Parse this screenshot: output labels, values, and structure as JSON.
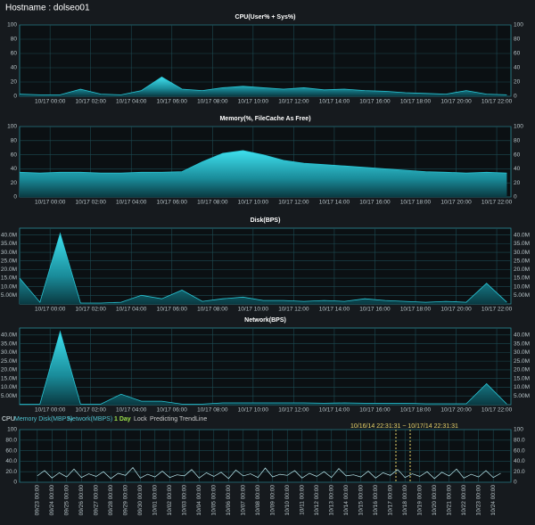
{
  "header": {
    "hostname": "Hostname : dolseo01"
  },
  "tabs": [
    "CPU",
    "Memory Disk(MBPS)",
    "Network(MBPS)",
    "1 Day",
    "Lock",
    "Predicting TrendLine"
  ],
  "range_label": "10/16/14 22:31:31 ~ 10/17/14 22:31:31",
  "chart_data": [
    {
      "type": "area",
      "title": "CPU(User% + Sys%)",
      "color": "#29c6d6",
      "x": [
        -1.5,
        -0.5,
        0.5,
        1.5,
        2.5,
        3.5,
        4.5,
        5.5,
        6.5,
        7.5,
        8.5,
        9.5,
        10.5,
        11.5,
        12.5,
        13.5,
        14.5,
        15.5,
        16.5,
        17.5,
        18.5,
        19.5,
        20.5,
        21.5,
        22.5
      ],
      "values": [
        3,
        2,
        2,
        10,
        3,
        2,
        8,
        27,
        10,
        8,
        12,
        14,
        12,
        10,
        12,
        9,
        10,
        8,
        7,
        5,
        4,
        3,
        8,
        3,
        2
      ],
      "xlim": [
        -1.5,
        22.7
      ],
      "ylim": [
        0,
        100
      ],
      "yticks": [
        0,
        20,
        40,
        60,
        80,
        100
      ],
      "xticks": [
        {
          "value": 0,
          "label": "10/17 00:00"
        },
        {
          "value": 2,
          "label": "10/17 02:00"
        },
        {
          "value": 4,
          "label": "10/17 04:00"
        },
        {
          "value": 6,
          "label": "10/17 06:00"
        },
        {
          "value": 8,
          "label": "10/17 08:00"
        },
        {
          "value": 10,
          "label": "10/17 10:00"
        },
        {
          "value": 12,
          "label": "10/17 12:00"
        },
        {
          "value": 14,
          "label": "10/17 14:00"
        },
        {
          "value": 16,
          "label": "10/17 16:00"
        },
        {
          "value": 18,
          "label": "10/17 18:00"
        },
        {
          "value": 20,
          "label": "10/17 20:00"
        },
        {
          "value": 22,
          "label": "10/17 22:00"
        }
      ]
    },
    {
      "type": "area",
      "title": "Memory(%, FileCache As Free)",
      "color": "#29c6d6",
      "x": [
        -1.5,
        -0.5,
        0.5,
        1.5,
        2.5,
        3.5,
        4.5,
        5.5,
        6.5,
        7.5,
        8.5,
        9.5,
        10.5,
        11.5,
        12.5,
        13.5,
        14.5,
        15.5,
        16.5,
        17.5,
        18.5,
        19.5,
        20.5,
        21.5,
        22.5
      ],
      "values": [
        35,
        34,
        35,
        35,
        34,
        34,
        35,
        35,
        36,
        50,
        62,
        66,
        60,
        52,
        48,
        46,
        44,
        42,
        40,
        38,
        36,
        35,
        34,
        35,
        34
      ],
      "xlim": [
        -1.5,
        22.7
      ],
      "ylim": [
        0,
        100
      ],
      "yticks": [
        0,
        20,
        40,
        60,
        80,
        100
      ],
      "xticks": [
        {
          "value": 0,
          "label": "10/17 00:00"
        },
        {
          "value": 2,
          "label": "10/17 02:00"
        },
        {
          "value": 4,
          "label": "10/17 04:00"
        },
        {
          "value": 6,
          "label": "10/17 06:00"
        },
        {
          "value": 8,
          "label": "10/17 08:00"
        },
        {
          "value": 10,
          "label": "10/17 10:00"
        },
        {
          "value": 12,
          "label": "10/17 12:00"
        },
        {
          "value": 14,
          "label": "10/17 14:00"
        },
        {
          "value": 16,
          "label": "10/17 16:00"
        },
        {
          "value": 18,
          "label": "10/17 18:00"
        },
        {
          "value": 20,
          "label": "10/17 20:00"
        },
        {
          "value": 22,
          "label": "10/17 22:00"
        }
      ]
    },
    {
      "type": "area",
      "title": "Disk(BPS)",
      "color": "#29c6d6",
      "x": [
        -1.5,
        -0.5,
        0.5,
        1.5,
        2.5,
        3.5,
        4.5,
        5.5,
        6.5,
        7.5,
        8.5,
        9.5,
        10.5,
        11.5,
        12.5,
        13.5,
        14.5,
        15.5,
        16.5,
        17.5,
        18.5,
        19.5,
        20.5,
        21.5,
        22.5
      ],
      "values": [
        15000000,
        1000000,
        41000000,
        500000,
        500000,
        1000000,
        5000000,
        3000000,
        8000000,
        1500000,
        3000000,
        4000000,
        2000000,
        2000000,
        1500000,
        2000000,
        1500000,
        3000000,
        2000000,
        1500000,
        1000000,
        1500000,
        1000000,
        12000000,
        1000000
      ],
      "xlim": [
        -1.5,
        22.7
      ],
      "ylim": [
        0,
        44000000
      ],
      "yticks": [
        {
          "value": 5000000,
          "label": "5.00M"
        },
        {
          "value": 10000000,
          "label": "10.0M"
        },
        {
          "value": 15000000,
          "label": "15.0M"
        },
        {
          "value": 20000000,
          "label": "20.0M"
        },
        {
          "value": 25000000,
          "label": "25.0M"
        },
        {
          "value": 30000000,
          "label": "30.0M"
        },
        {
          "value": 35000000,
          "label": "35.0M"
        },
        {
          "value": 40000000,
          "label": "40.0M"
        }
      ],
      "xticks": [
        {
          "value": 0,
          "label": "10/17 00:00"
        },
        {
          "value": 2,
          "label": "10/17 02:00"
        },
        {
          "value": 4,
          "label": "10/17 04:00"
        },
        {
          "value": 6,
          "label": "10/17 06:00"
        },
        {
          "value": 8,
          "label": "10/17 08:00"
        },
        {
          "value": 10,
          "label": "10/17 10:00"
        },
        {
          "value": 12,
          "label": "10/17 12:00"
        },
        {
          "value": 14,
          "label": "10/17 14:00"
        },
        {
          "value": 16,
          "label": "10/17 16:00"
        },
        {
          "value": 18,
          "label": "10/17 18:00"
        },
        {
          "value": 20,
          "label": "10/17 20:00"
        },
        {
          "value": 22,
          "label": "10/17 22:00"
        }
      ]
    },
    {
      "type": "area",
      "title": "Network(BPS)",
      "color": "#29c6d6",
      "x": [
        -1.5,
        -0.5,
        0.5,
        1.5,
        2.5,
        3.5,
        4.5,
        5.5,
        6.5,
        7.5,
        8.5,
        9.5,
        10.5,
        11.5,
        12.5,
        13.5,
        14.5,
        15.5,
        16.5,
        17.5,
        18.5,
        19.5,
        20.5,
        21.5,
        22.5
      ],
      "values": [
        300000,
        300000,
        42000000,
        300000,
        300000,
        6000000,
        2000000,
        2000000,
        300000,
        300000,
        1000000,
        1000000,
        1000000,
        1000000,
        1000000,
        800000,
        1000000,
        800000,
        800000,
        800000,
        500000,
        500000,
        500000,
        12000000,
        300000
      ],
      "xlim": [
        -1.5,
        22.7
      ],
      "ylim": [
        0,
        44000000
      ],
      "yticks": [
        {
          "value": 5000000,
          "label": "5.00M"
        },
        {
          "value": 10000000,
          "label": "10.0M"
        },
        {
          "value": 15000000,
          "label": "15.0M"
        },
        {
          "value": 20000000,
          "label": "20.0M"
        },
        {
          "value": 25000000,
          "label": "25.0M"
        },
        {
          "value": 30000000,
          "label": "30.0M"
        },
        {
          "value": 35000000,
          "label": "35.0M"
        },
        {
          "value": 40000000,
          "label": "40.0M"
        }
      ],
      "xticks": [
        {
          "value": 0,
          "label": "10/17 00:00"
        },
        {
          "value": 2,
          "label": "10/17 02:00"
        },
        {
          "value": 4,
          "label": "10/17 04:00"
        },
        {
          "value": 6,
          "label": "10/17 06:00"
        },
        {
          "value": 8,
          "label": "10/17 08:00"
        },
        {
          "value": 10,
          "label": "10/17 10:00"
        },
        {
          "value": 12,
          "label": "10/17 12:00"
        },
        {
          "value": 14,
          "label": "10/17 14:00"
        },
        {
          "value": 16,
          "label": "10/17 16:00"
        },
        {
          "value": 18,
          "label": "10/17 18:00"
        },
        {
          "value": 20,
          "label": "10/17 20:00"
        },
        {
          "value": 22,
          "label": "10/17 22:00"
        }
      ]
    },
    {
      "type": "line",
      "color": "#bfeff5",
      "x": [
        0,
        0.5,
        1,
        1.5,
        2,
        2.5,
        3,
        3.5,
        4,
        4.5,
        5,
        5.5,
        6,
        6.5,
        7,
        7.5,
        8,
        8.5,
        9,
        9.5,
        10,
        10.5,
        11,
        11.5,
        12,
        12.5,
        13,
        13.5,
        14,
        14.5,
        15,
        15.5,
        16,
        16.5,
        17,
        17.5,
        18,
        18.5,
        19,
        19.5,
        20,
        20.5,
        21,
        21.5,
        22,
        22.5,
        23,
        23.5,
        24,
        24.5,
        25,
        25.5,
        26,
        26.5,
        27,
        27.5,
        28,
        28.5,
        29,
        29.5,
        30,
        30.5,
        31,
        31.5
      ],
      "values": [
        12,
        22,
        8,
        18,
        10,
        25,
        9,
        16,
        11,
        20,
        7,
        17,
        13,
        28,
        8,
        15,
        10,
        21,
        9,
        14,
        12,
        24,
        8,
        18,
        11,
        19,
        7,
        23,
        12,
        16,
        9,
        27,
        10,
        15,
        13,
        22,
        8,
        17,
        11,
        20,
        9,
        26,
        12,
        14,
        10,
        21,
        8,
        18,
        13,
        24,
        9,
        16,
        11,
        20,
        7,
        19,
        12,
        25,
        8,
        15,
        10,
        22,
        9,
        17
      ],
      "xlim": [
        -1.2,
        32.2
      ],
      "ylim": [
        0,
        100
      ],
      "yticks": [
        0,
        {
          "value": 20,
          "label": "20.0"
        },
        {
          "value": 40,
          "label": "40.0"
        },
        {
          "value": 60,
          "label": "60.0"
        },
        {
          "value": 80,
          "label": "80.0"
        },
        100
      ],
      "xticks": [
        {
          "value": 0,
          "label": "09/23 00:00"
        },
        {
          "value": 1,
          "label": "09/24 00:00"
        },
        {
          "value": 2,
          "label": "09/25 00:00"
        },
        {
          "value": 3,
          "label": "09/26 00:00"
        },
        {
          "value": 4,
          "label": "09/27 00:00"
        },
        {
          "value": 5,
          "label": "09/28 00:00"
        },
        {
          "value": 6,
          "label": "09/29 00:00"
        },
        {
          "value": 7,
          "label": "09/30 00:00"
        },
        {
          "value": 8,
          "label": "10/01 00:00"
        },
        {
          "value": 9,
          "label": "10/02 00:00"
        },
        {
          "value": 10,
          "label": "10/03 00:00"
        },
        {
          "value": 11,
          "label": "10/04 00:00"
        },
        {
          "value": 12,
          "label": "10/05 00:00"
        },
        {
          "value": 13,
          "label": "10/06 00:00"
        },
        {
          "value": 14,
          "label": "10/07 00:00"
        },
        {
          "value": 15,
          "label": "10/08 00:00"
        },
        {
          "value": 16,
          "label": "10/09 00:00"
        },
        {
          "value": 17,
          "label": "10/10 00:00"
        },
        {
          "value": 18,
          "label": "10/11 00:00"
        },
        {
          "value": 19,
          "label": "10/12 00:00"
        },
        {
          "value": 20,
          "label": "10/13 00:00"
        },
        {
          "value": 21,
          "label": "10/14 00:00"
        },
        {
          "value": 22,
          "label": "10/15 00:00"
        },
        {
          "value": 23,
          "label": "10/16 00:00"
        },
        {
          "value": 24,
          "label": "10/17 00:00"
        },
        {
          "value": 25,
          "label": "10/18 00:00"
        },
        {
          "value": 26,
          "label": "10/19 00:00"
        },
        {
          "value": 27,
          "label": "10/20 00:00"
        },
        {
          "value": 28,
          "label": "10/21 00:00"
        },
        {
          "value": 29,
          "label": "10/22 00:00"
        },
        {
          "value": 30,
          "label": "10/23 00:00"
        },
        {
          "value": 31,
          "label": "10/24 00:00"
        }
      ]
    }
  ]
}
